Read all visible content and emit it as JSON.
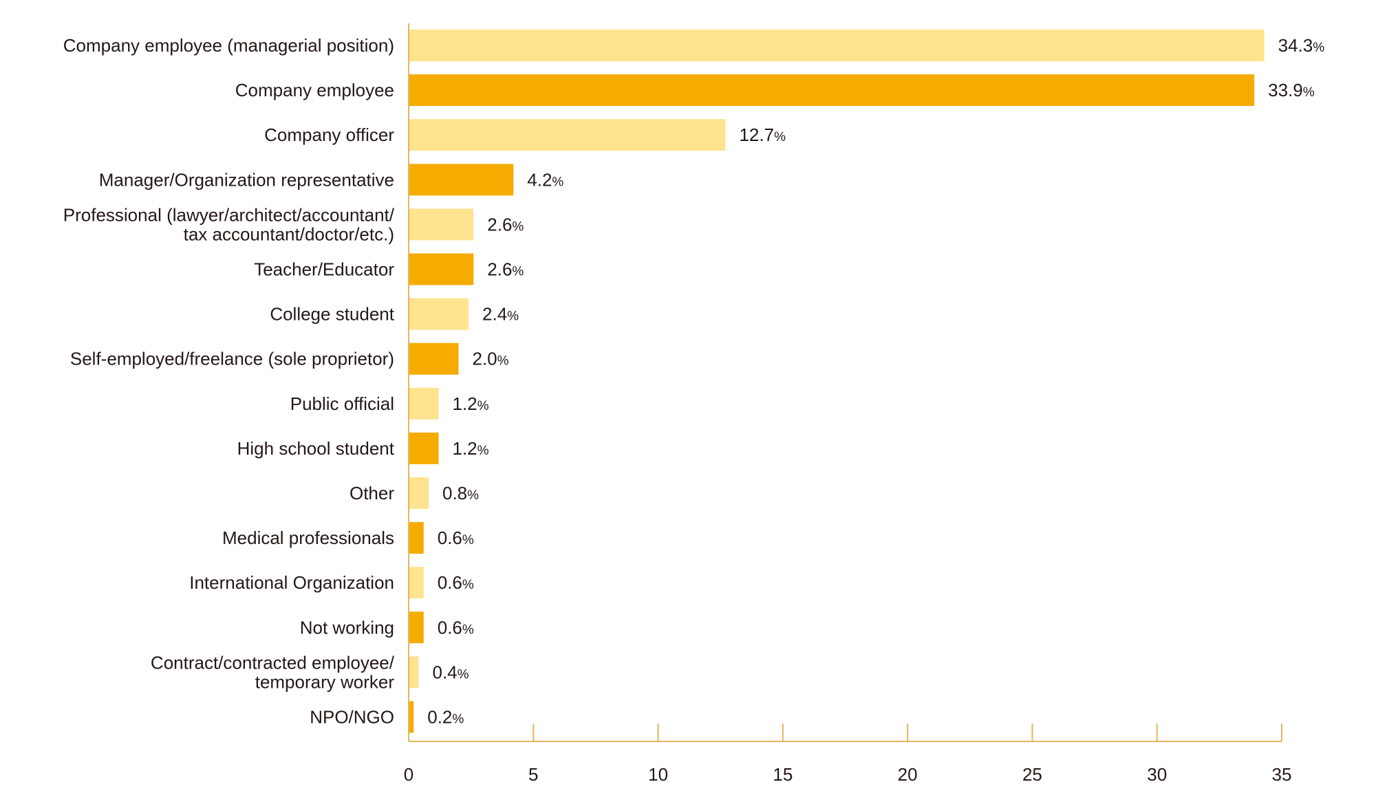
{
  "colors": {
    "light_bar": "#ffe38f",
    "dark_bar": "#f5ab00",
    "axis": "#e3b560",
    "text": "#231815"
  },
  "chart_data": {
    "type": "bar",
    "orientation": "horizontal",
    "categories": [
      [
        "Company employee (managerial position)"
      ],
      [
        "Company employee"
      ],
      [
        "Company officer"
      ],
      [
        "Manager/Organization representative"
      ],
      [
        "Professional (lawyer/architect/accountant/",
        "tax accountant/doctor/etc.)"
      ],
      [
        "Teacher/Educator"
      ],
      [
        "College student"
      ],
      [
        "Self-employed/freelance (sole proprietor)"
      ],
      [
        "Public official"
      ],
      [
        "High school student"
      ],
      [
        "Other"
      ],
      [
        "Medical professionals"
      ],
      [
        "International Organization"
      ],
      [
        "Not working"
      ],
      [
        "Contract/contracted employee/",
        "temporary worker"
      ],
      [
        "NPO/NGO"
      ]
    ],
    "values": [
      34.3,
      33.9,
      12.7,
      4.2,
      2.6,
      2.6,
      2.4,
      2.0,
      1.2,
      1.2,
      0.8,
      0.6,
      0.6,
      0.6,
      0.4,
      0.2
    ],
    "value_labels": [
      "34.3",
      "33.9",
      "12.7",
      "4.2",
      "2.6",
      "2.6",
      "2.4",
      "2.0",
      "1.2",
      "1.2",
      "0.8",
      "0.6",
      "0.6",
      "0.6",
      "0.4",
      "0.2"
    ],
    "value_unit": "%",
    "bar_color_pattern": [
      "light",
      "dark"
    ],
    "xlim": [
      0,
      35
    ],
    "xticks": [
      0,
      5,
      10,
      15,
      20,
      25,
      30,
      35
    ],
    "xtick_labels": [
      "0",
      "5",
      "10",
      "15",
      "20",
      "25",
      "30",
      "35"
    ],
    "title": "",
    "xlabel": "",
    "ylabel": "",
    "grid": false,
    "legend": "none"
  }
}
